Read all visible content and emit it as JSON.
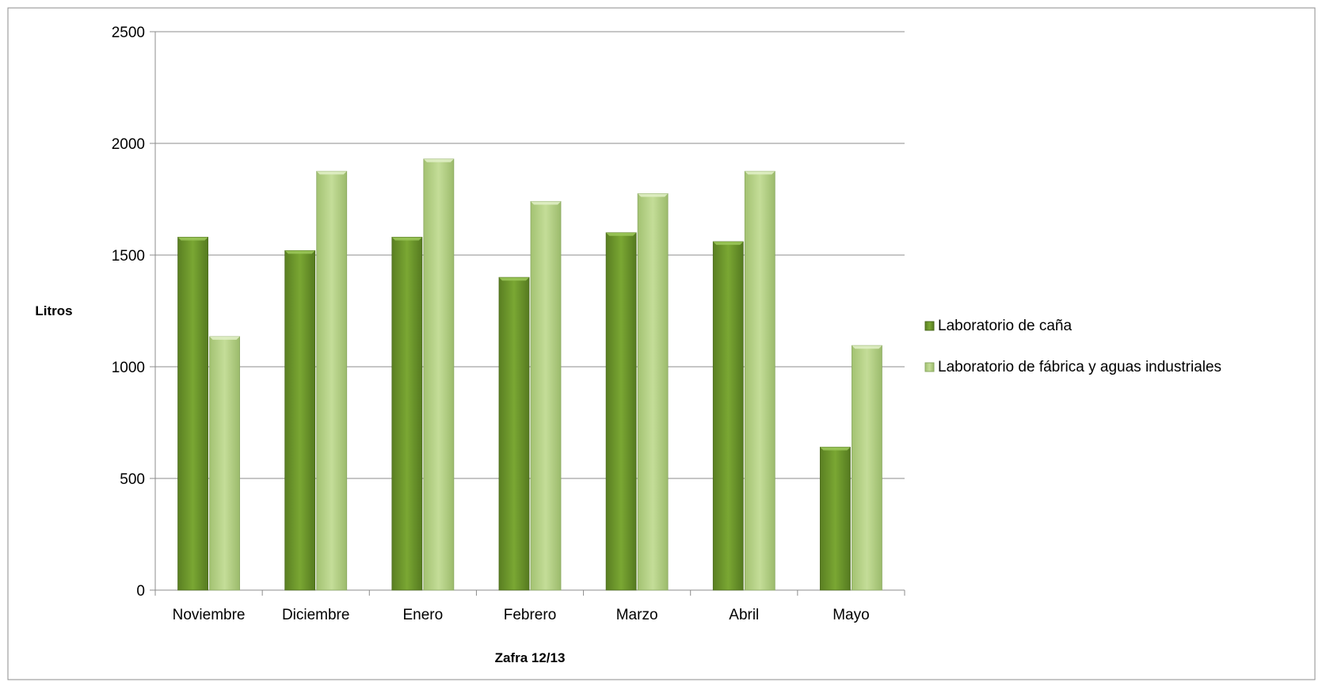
{
  "chart_data": {
    "type": "bar",
    "title": "",
    "xlabel": "Zafra 12/13",
    "ylabel": "Litros",
    "ylim": [
      0,
      2500
    ],
    "yticks": [
      0,
      500,
      1000,
      1500,
      2000,
      2500
    ],
    "grid": true,
    "legend_position": "right",
    "categories": [
      "Noviembre",
      "Diciembre",
      "Enero",
      "Febrero",
      "Marzo",
      "Abril",
      "Mayo"
    ],
    "series": [
      {
        "name": "Laboratorio de caña",
        "color": "#6f9a2c",
        "values": [
          1580,
          1520,
          1580,
          1400,
          1600,
          1560,
          640
        ]
      },
      {
        "name": "Laboratorio de fábrica y aguas industriales",
        "color": "#b9d68a",
        "values": [
          1135,
          1875,
          1930,
          1740,
          1775,
          1875,
          1095
        ]
      }
    ]
  }
}
